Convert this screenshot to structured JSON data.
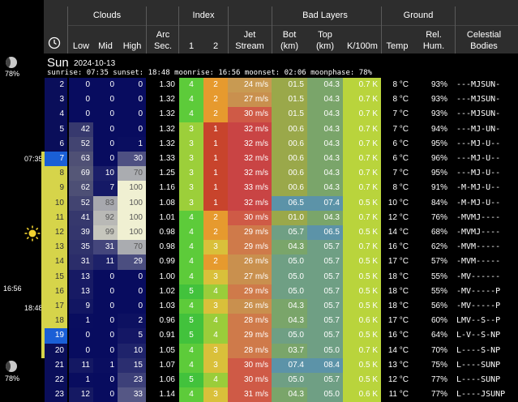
{
  "header": {
    "groups": {
      "clouds": "Clouds",
      "index": "Index",
      "bad_layers": "Bad Layers",
      "ground": "Ground"
    },
    "columns": {
      "time_icon": "clock-icon",
      "low": "Low",
      "mid": "Mid",
      "high": "High",
      "arc1": "Arc",
      "arc2": "Sec.",
      "idx1": "1",
      "idx2": "2",
      "jet1": "Jet",
      "jet2": "Stream",
      "bot1": "Bot",
      "bot2": "(km)",
      "top1": "Top",
      "top2": "(km)",
      "k": "K/100m",
      "temp": "Temp",
      "hum1": "Rel.",
      "hum2": "Hum.",
      "cel1": "Celestial",
      "cel2": "Bodies"
    }
  },
  "day": {
    "name": "Sun",
    "date": "2024-10-13",
    "summary": "sunrise: 07:35 sunset: 18:48 moonrise: 16:56 moonset: 02:06 moonphase: 78%"
  },
  "side": {
    "moon_top_pct": "78%",
    "moon_bottom_pct": "78%",
    "sunrise": "07:35",
    "sunset": "18:48",
    "moonrise": "16:56",
    "sun_icon": "sun-icon",
    "moon_icon": "moon-icon"
  },
  "colors": {
    "night": "#0a0e5a",
    "day": "#d6d44a",
    "hour_highlight": "#1a5fd6"
  },
  "rows": [
    {
      "h": "2",
      "low": "0",
      "mid": "0",
      "high": "0",
      "arc": "1.30",
      "i1": "4",
      "i2": "2",
      "jet": "24 m/s",
      "bot": "01.5",
      "top": "04.3",
      "k": "0.7 K",
      "temp": "8 °C",
      "hum": "93%",
      "cel": "---MJSUN-"
    },
    {
      "h": "3",
      "low": "0",
      "mid": "0",
      "high": "0",
      "arc": "1.32",
      "i1": "4",
      "i2": "2",
      "jet": "27 m/s",
      "bot": "01.5",
      "top": "04.3",
      "k": "0.7 K",
      "temp": "8 °C",
      "hum": "93%",
      "cel": "---MJSUN-"
    },
    {
      "h": "4",
      "low": "0",
      "mid": "0",
      "high": "0",
      "arc": "1.32",
      "i1": "4",
      "i2": "2",
      "jet": "30 m/s",
      "bot": "01.5",
      "top": "04.3",
      "k": "0.7 K",
      "temp": "7 °C",
      "hum": "93%",
      "cel": "---MJSUN-"
    },
    {
      "h": "5",
      "low": "42",
      "mid": "0",
      "high": "0",
      "arc": "1.32",
      "i1": "3",
      "i2": "1",
      "jet": "32 m/s",
      "bot": "00.6",
      "top": "04.3",
      "k": "0.7 K",
      "temp": "7 °C",
      "hum": "94%",
      "cel": "---MJ-UN-"
    },
    {
      "h": "6",
      "low": "52",
      "mid": "0",
      "high": "1",
      "arc": "1.32",
      "i1": "3",
      "i2": "1",
      "jet": "32 m/s",
      "bot": "00.6",
      "top": "04.3",
      "k": "0.7 K",
      "temp": "6 °C",
      "hum": "95%",
      "cel": "---MJ-U--"
    },
    {
      "h": "7",
      "low": "63",
      "mid": "0",
      "high": "30",
      "arc": "1.33",
      "i1": "3",
      "i2": "1",
      "jet": "32 m/s",
      "bot": "00.6",
      "top": "04.3",
      "k": "0.7 K",
      "temp": "6 °C",
      "hum": "96%",
      "cel": "---MJ-U--"
    },
    {
      "h": "8",
      "low": "69",
      "mid": "10",
      "high": "70",
      "arc": "1.25",
      "i1": "3",
      "i2": "1",
      "jet": "32 m/s",
      "bot": "00.6",
      "top": "04.3",
      "k": "0.7 K",
      "temp": "7 °C",
      "hum": "95%",
      "cel": "---MJ-U--"
    },
    {
      "h": "9",
      "low": "62",
      "mid": "7",
      "high": "100",
      "arc": "1.16",
      "i1": "3",
      "i2": "1",
      "jet": "33 m/s",
      "bot": "00.6",
      "top": "04.3",
      "k": "0.7 K",
      "temp": "8 °C",
      "hum": "91%",
      "cel": "-M-MJ-U--"
    },
    {
      "h": "10",
      "low": "52",
      "mid": "83",
      "high": "100",
      "arc": "1.08",
      "i1": "3",
      "i2": "1",
      "jet": "32 m/s",
      "bot": "06.5",
      "top": "07.4",
      "k": "0.5 K",
      "temp": "10 °C",
      "hum": "84%",
      "cel": "-M-MJ-U--"
    },
    {
      "h": "11",
      "low": "41",
      "mid": "92",
      "high": "100",
      "arc": "1.01",
      "i1": "4",
      "i2": "2",
      "jet": "30 m/s",
      "bot": "01.0",
      "top": "04.3",
      "k": "0.7 K",
      "temp": "12 °C",
      "hum": "76%",
      "cel": "-MVMJ----"
    },
    {
      "h": "12",
      "low": "39",
      "mid": "99",
      "high": "100",
      "arc": "0.98",
      "i1": "4",
      "i2": "2",
      "jet": "29 m/s",
      "bot": "05.7",
      "top": "06.5",
      "k": "0.5 K",
      "temp": "14 °C",
      "hum": "68%",
      "cel": "-MVMJ----"
    },
    {
      "h": "13",
      "low": "35",
      "mid": "31",
      "high": "70",
      "arc": "0.98",
      "i1": "4",
      "i2": "3",
      "jet": "29 m/s",
      "bot": "04.3",
      "top": "05.7",
      "k": "0.7 K",
      "temp": "16 °C",
      "hum": "62%",
      "cel": "-MVM-----"
    },
    {
      "h": "14",
      "low": "31",
      "mid": "11",
      "high": "29",
      "arc": "0.99",
      "i1": "4",
      "i2": "2",
      "jet": "26 m/s",
      "bot": "05.0",
      "top": "05.7",
      "k": "0.5 K",
      "temp": "17 °C",
      "hum": "57%",
      "cel": "-MVM-----"
    },
    {
      "h": "15",
      "low": "13",
      "mid": "0",
      "high": "0",
      "arc": "1.00",
      "i1": "4",
      "i2": "3",
      "jet": "27 m/s",
      "bot": "05.0",
      "top": "05.7",
      "k": "0.5 K",
      "temp": "18 °C",
      "hum": "55%",
      "cel": "-MV------"
    },
    {
      "h": "16",
      "low": "13",
      "mid": "0",
      "high": "0",
      "arc": "1.02",
      "i1": "5",
      "i2": "4",
      "jet": "29 m/s",
      "bot": "05.0",
      "top": "05.7",
      "k": "0.5 K",
      "temp": "18 °C",
      "hum": "55%",
      "cel": "-MV-----P"
    },
    {
      "h": "17",
      "low": "9",
      "mid": "0",
      "high": "0",
      "arc": "1.03",
      "i1": "4",
      "i2": "3",
      "jet": "26 m/s",
      "bot": "04.3",
      "top": "05.7",
      "k": "0.5 K",
      "temp": "18 °C",
      "hum": "56%",
      "cel": "-MV-----P"
    },
    {
      "h": "18",
      "low": "1",
      "mid": "0",
      "high": "2",
      "arc": "0.96",
      "i1": "5",
      "i2": "4",
      "jet": "28 m/s",
      "bot": "04.3",
      "top": "05.7",
      "k": "0.6 K",
      "temp": "17 °C",
      "hum": "60%",
      "cel": "LMV--S--P"
    },
    {
      "h": "19",
      "low": "0",
      "mid": "0",
      "high": "5",
      "arc": "0.91",
      "i1": "5",
      "i2": "4",
      "jet": "29 m/s",
      "bot": "05.0",
      "top": "05.7",
      "k": "0.5 K",
      "temp": "16 °C",
      "hum": "64%",
      "cel": "L-V--S-NP"
    },
    {
      "h": "20",
      "low": "0",
      "mid": "0",
      "high": "10",
      "arc": "1.05",
      "i1": "4",
      "i2": "3",
      "jet": "28 m/s",
      "bot": "03.7",
      "top": "05.0",
      "k": "0.7 K",
      "temp": "14 °C",
      "hum": "70%",
      "cel": "L----S-NP"
    },
    {
      "h": "21",
      "low": "11",
      "mid": "1",
      "high": "15",
      "arc": "1.07",
      "i1": "4",
      "i2": "3",
      "jet": "30 m/s",
      "bot": "07.4",
      "top": "08.4",
      "k": "0.5 K",
      "temp": "13 °C",
      "hum": "75%",
      "cel": "L----SUNP"
    },
    {
      "h": "22",
      "low": "1",
      "mid": "0",
      "high": "23",
      "arc": "1.06",
      "i1": "5",
      "i2": "4",
      "jet": "30 m/s",
      "bot": "05.0",
      "top": "05.7",
      "k": "0.5 K",
      "temp": "12 °C",
      "hum": "77%",
      "cel": "L----SUNP"
    },
    {
      "h": "23",
      "low": "12",
      "mid": "0",
      "high": "33",
      "arc": "1.14",
      "i1": "4",
      "i2": "3",
      "jet": "31 m/s",
      "bot": "04.3",
      "top": "05.0",
      "k": "0.6 K",
      "temp": "11 °C",
      "hum": "77%",
      "cel": "L----JSUNP"
    }
  ]
}
